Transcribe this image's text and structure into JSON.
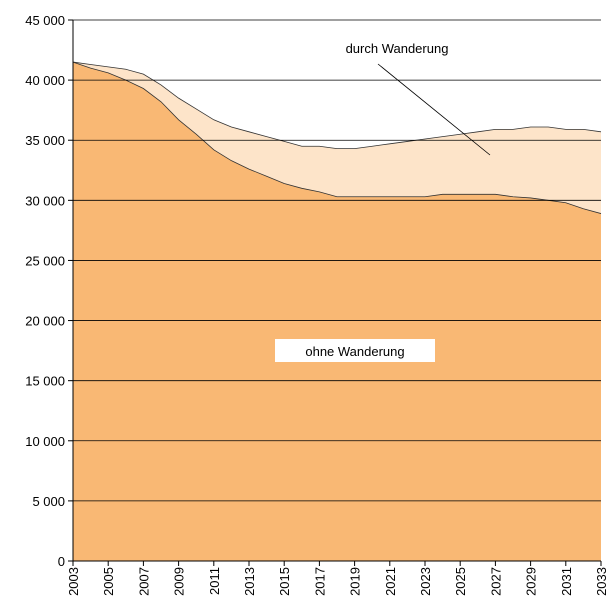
{
  "chart_data": {
    "type": "area",
    "x": [
      2003,
      2004,
      2005,
      2006,
      2007,
      2008,
      2009,
      2010,
      2011,
      2012,
      2013,
      2014,
      2015,
      2016,
      2017,
      2018,
      2019,
      2020,
      2021,
      2022,
      2023,
      2024,
      2025,
      2026,
      2027,
      2028,
      2029,
      2030,
      2031,
      2032,
      2033
    ],
    "series": [
      {
        "name": "durch Wanderung",
        "color": "#fde4c9",
        "values": [
          41500,
          41300,
          41100,
          40900,
          40500,
          39600,
          38500,
          37600,
          36700,
          36100,
          35700,
          35300,
          34900,
          34500,
          34500,
          34300,
          34300,
          34500,
          34700,
          34900,
          35100,
          35300,
          35500,
          35700,
          35900,
          35900,
          36100,
          36100,
          35900,
          35900,
          35700
        ]
      },
      {
        "name": "ohne Wanderung",
        "color": "#f9b874",
        "values": [
          41500,
          41000,
          40600,
          40000,
          39300,
          38200,
          36700,
          35500,
          34200,
          33300,
          32600,
          32000,
          31400,
          31000,
          30700,
          30300,
          30300,
          30300,
          30300,
          30300,
          30300,
          30500,
          30500,
          30500,
          30500,
          30300,
          30200,
          30000,
          29800,
          29300,
          28900
        ]
      }
    ],
    "xlim": [
      2003,
      2033
    ],
    "xticks": [
      2003,
      2005,
      2007,
      2009,
      2011,
      2013,
      2015,
      2017,
      2019,
      2021,
      2023,
      2025,
      2027,
      2029,
      2031,
      2033
    ],
    "ylim": [
      0,
      45000
    ],
    "yticks": [
      0,
      {
        "value": 5000,
        "label": "5 000"
      },
      {
        "value": 10000,
        "label": "10 000"
      },
      {
        "value": 15000,
        "label": "15 000"
      },
      {
        "value": 20000,
        "label": "20 000"
      },
      {
        "value": 25000,
        "label": "25 000"
      },
      {
        "value": 30000,
        "label": "30 000"
      },
      {
        "value": 35000,
        "label": "35 000"
      },
      {
        "value": 40000,
        "label": "40 000"
      },
      {
        "value": 45000,
        "label": "45 000"
      }
    ],
    "grid": true
  }
}
